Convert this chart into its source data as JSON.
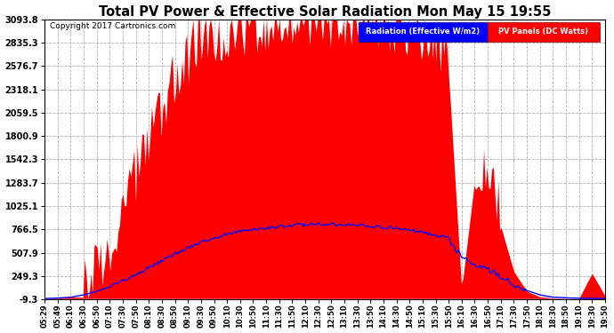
{
  "title": "Total PV Power & Effective Solar Radiation Mon May 15 19:55",
  "copyright": "Copyright 2017 Cartronics.com",
  "legend_radiation": "Radiation (Effective W/m2)",
  "legend_pv": "PV Panels (DC Watts)",
  "yticks": [
    -9.3,
    249.3,
    507.9,
    766.5,
    1025.1,
    1283.7,
    1542.3,
    1800.9,
    2059.5,
    2318.1,
    2576.7,
    2835.3,
    3093.8
  ],
  "ymin": -9.3,
  "ymax": 3093.8,
  "background_color": "#ffffff",
  "plot_bg_color": "#ffffff",
  "grid_color": "#b0b0b0",
  "red_color": "#ff0000",
  "blue_color": "#0000ff",
  "xtick_labels": [
    "05:29",
    "05:49",
    "06:10",
    "06:30",
    "06:50",
    "07:10",
    "07:30",
    "07:50",
    "08:10",
    "08:30",
    "08:50",
    "09:10",
    "09:30",
    "09:50",
    "10:10",
    "10:30",
    "10:50",
    "11:10",
    "11:30",
    "11:50",
    "12:10",
    "12:30",
    "12:50",
    "13:10",
    "13:30",
    "13:50",
    "14:10",
    "14:30",
    "14:50",
    "15:10",
    "15:30",
    "15:50",
    "16:10",
    "16:30",
    "16:50",
    "17:10",
    "17:30",
    "17:50",
    "18:10",
    "18:30",
    "18:50",
    "19:10",
    "19:30",
    "19:50"
  ]
}
